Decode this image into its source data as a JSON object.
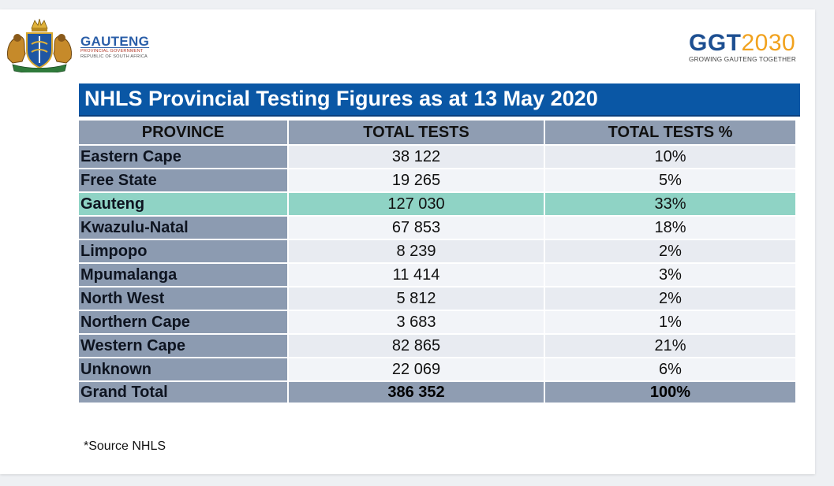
{
  "header": {
    "left_logo": {
      "name": "GAUTENG",
      "line1": "PROVINCIAL GOVERNMENT",
      "line2": "REPUBLIC OF SOUTH AFRICA",
      "icon": "coat-of-arms-icon"
    },
    "right_logo": {
      "part1": "GGT",
      "part2": "2030",
      "tagline": "GROWING GAUTENG TOGETHER"
    }
  },
  "title": "NHLS Provincial Testing Figures as at 13 May 2020",
  "table": {
    "headers": [
      "PROVINCE",
      "TOTAL TESTS",
      "TOTAL TESTS %"
    ],
    "rows": [
      {
        "province": "Eastern Cape",
        "tests": "38 122",
        "pct": "10%"
      },
      {
        "province": "Free State",
        "tests": "19 265",
        "pct": "5%"
      },
      {
        "province": "Gauteng",
        "tests": "127 030",
        "pct": "33%"
      },
      {
        "province": "Kwazulu-Natal",
        "tests": "67 853",
        "pct": "18%"
      },
      {
        "province": "Limpopo",
        "tests": "8 239",
        "pct": "2%"
      },
      {
        "province": "Mpumalanga",
        "tests": "11 414",
        "pct": "3%"
      },
      {
        "province": "North West",
        "tests": "5 812",
        "pct": "2%"
      },
      {
        "province": "Northern Cape",
        "tests": "3 683",
        "pct": "1%"
      },
      {
        "province": "Western Cape",
        "tests": "82 865",
        "pct": "21%"
      },
      {
        "province": "Unknown",
        "tests": "22 069",
        "pct": "6%"
      }
    ],
    "total": {
      "province": "Grand Total",
      "tests": "386 352",
      "pct": "100%"
    }
  },
  "source_note": "*Source NHLS",
  "colors": {
    "title_bar": "#0a57a5",
    "header_row": "#8f9db2",
    "province_col": "#8c9bb1",
    "value_cells": "#e8ebf1",
    "highlight_row": "#8fd3c5",
    "brand_blue": "#1d4f91",
    "brand_orange": "#f1a21e"
  }
}
